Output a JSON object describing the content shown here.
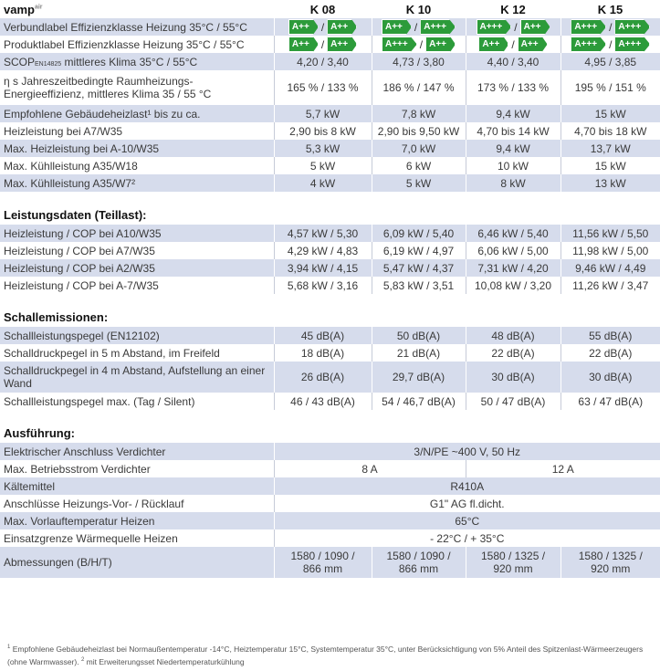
{
  "header": {
    "brand": "vamp",
    "brand_sup": "air",
    "models": [
      "K 08",
      "K 10",
      "K 12",
      "K 15"
    ]
  },
  "main_rows": [
    {
      "label": "Verbundlabel Effizienzklasse Heizung 35°C / 55°C",
      "badges": [
        [
          "A++",
          "A++"
        ],
        [
          "A++",
          "A+++"
        ],
        [
          "A+++",
          "A++"
        ],
        [
          "A+++",
          "A+++"
        ]
      ]
    },
    {
      "label": "Produktlabel Effizienzklasse Heizung 35°C / 55°C",
      "badges": [
        [
          "A++",
          "A++"
        ],
        [
          "A+++",
          "A++"
        ],
        [
          "A++",
          "A++"
        ],
        [
          "A+++",
          "A+++"
        ]
      ]
    },
    {
      "label_pre": "SCOP",
      "label_small": "EN14825",
      "label_post": " mittleres Klima 35°C / 55°C",
      "values": [
        "4,20 / 3,40",
        "4,73 / 3,80",
        "4,40 / 3,40",
        "4,95 / 3,85"
      ]
    },
    {
      "label": "η s Jahreszeitbedingte Raumheizungs-Energieeffizienz, mittleres Klima 35 / 55 °C",
      "values": [
        "165 % / 133 %",
        "186 % / 147 %",
        "173 % / 133 %",
        "195 % / 151 %"
      ]
    },
    {
      "label": "Empfohlene Gebäudeheizlast¹ bis zu ca.",
      "values": [
        "5,7 kW",
        "7,8 kW",
        "9,4 kW",
        "15 kW"
      ]
    },
    {
      "label": "Heizleistung bei A7/W35",
      "values": [
        "2,90 bis 8 kW",
        "2,90 bis 9,50 kW",
        "4,70 bis 14 kW",
        "4,70 bis 18 kW"
      ]
    },
    {
      "label": "Max. Heizleistung bei A-10/W35",
      "values": [
        "5,3 kW",
        "7,0 kW",
        "9,4 kW",
        "13,7 kW"
      ]
    },
    {
      "label": "Max. Kühlleistung A35/W18",
      "values": [
        "5 kW",
        "6 kW",
        "10 kW",
        "15 kW"
      ]
    },
    {
      "label": "Max. Kühlleistung A35/W7²",
      "values": [
        "4 kW",
        "5 kW",
        "8 kW",
        "13 kW"
      ]
    }
  ],
  "leistung": {
    "title": "Leistungsdaten (Teillast):",
    "rows": [
      {
        "label": "Heizleistung / COP bei A10/W35",
        "values": [
          "4,57 kW / 5,30",
          "6,09 kW / 5,40",
          "6,46 kW / 5,40",
          "11,56 kW / 5,50"
        ]
      },
      {
        "label": "Heizleistung / COP bei A7/W35",
        "values": [
          "4,29 kW / 4,83",
          "6,19 kW / 4,97",
          "6,06 kW / 5,00",
          "11,98 kW / 5,00"
        ]
      },
      {
        "label": "Heizleistung / COP bei A2/W35",
        "values": [
          "3,94 kW / 4,15",
          "5,47 kW / 4,37",
          "7,31 kW / 4,20",
          "9,46 kW / 4,49"
        ]
      },
      {
        "label": "Heizleistung / COP bei A-7/W35",
        "values": [
          "5,68 kW / 3,16",
          "5,83 kW / 3,51",
          "10,08 kW / 3,20",
          "11,26 kW / 3,47"
        ]
      }
    ]
  },
  "schall": {
    "title": "Schallemissionen:",
    "rows": [
      {
        "label": "Schallleistungspegel (EN12102)",
        "values": [
          "45 dB(A)",
          "50 dB(A)",
          "48 dB(A)",
          "55 dB(A)"
        ]
      },
      {
        "label": "Schalldruckpegel in 5 m Abstand, im Freifeld",
        "values": [
          "18 dB(A)",
          "21 dB(A)",
          "22 dB(A)",
          "22 dB(A)"
        ]
      },
      {
        "label": "Schalldruckpegel in 4 m Abstand, Aufstellung an einer Wand",
        "values": [
          "26 dB(A)",
          "29,7 dB(A)",
          "30 dB(A)",
          "30 dB(A)"
        ]
      },
      {
        "label": "Schallleistungspegel max. (Tag / Silent)",
        "values": [
          "46 / 43 dB(A)",
          "54 / 46,7 dB(A)",
          "50 / 47 dB(A)",
          "63 / 47 dB(A)"
        ]
      }
    ]
  },
  "ausfuehrung": {
    "title": "Ausführung:",
    "anschluss_label": "Elektrischer Anschluss Verdichter",
    "anschluss_value": "3/N/PE ~400 V, 50 Hz",
    "strom_label": "Max. Betriebsstrom Verdichter",
    "strom_left": "8 A",
    "strom_right": "12 A",
    "kaelte_label": "Kältemittel",
    "kaelte_value": "R410A",
    "anschluesse_label": "Anschlüsse Heizungs-Vor- / Rücklauf",
    "anschluesse_value": "G1\" AG fl.dicht.",
    "vorlauf_label": "Max. Vorlauftemperatur Heizen",
    "vorlauf_value": "65°C",
    "einsatz_label": "Einsatzgrenze Wärmequelle Heizen",
    "einsatz_value": "- 22°C / + 35°C",
    "abm_label": "Abmessungen (B/H/T)",
    "abm_values": [
      [
        "1580 / 1090 /",
        "866 mm"
      ],
      [
        "1580 / 1090 /",
        "866 mm"
      ],
      [
        "1580 / 1325 /",
        "920 mm"
      ],
      [
        "1580 / 1325 /",
        "920 mm"
      ]
    ]
  },
  "footnote": {
    "n1": "1",
    "text1": " Empfohlene Gebäudeheizlast bei Normaußentemperatur -14°C, Heiztemperatur 15°C, Systemtemperatur 35°C, unter Berücksichtigung von 5% Anteil des Spitzenlast-Wärmeerzeugers (ohne Warmwasser).",
    "n2": "2",
    "text2": " mit Erweiterungsset Niedertemperaturkühlung"
  },
  "colors": {
    "row_shade": "#d6dcec",
    "badge_green": "#2c9b3a"
  }
}
